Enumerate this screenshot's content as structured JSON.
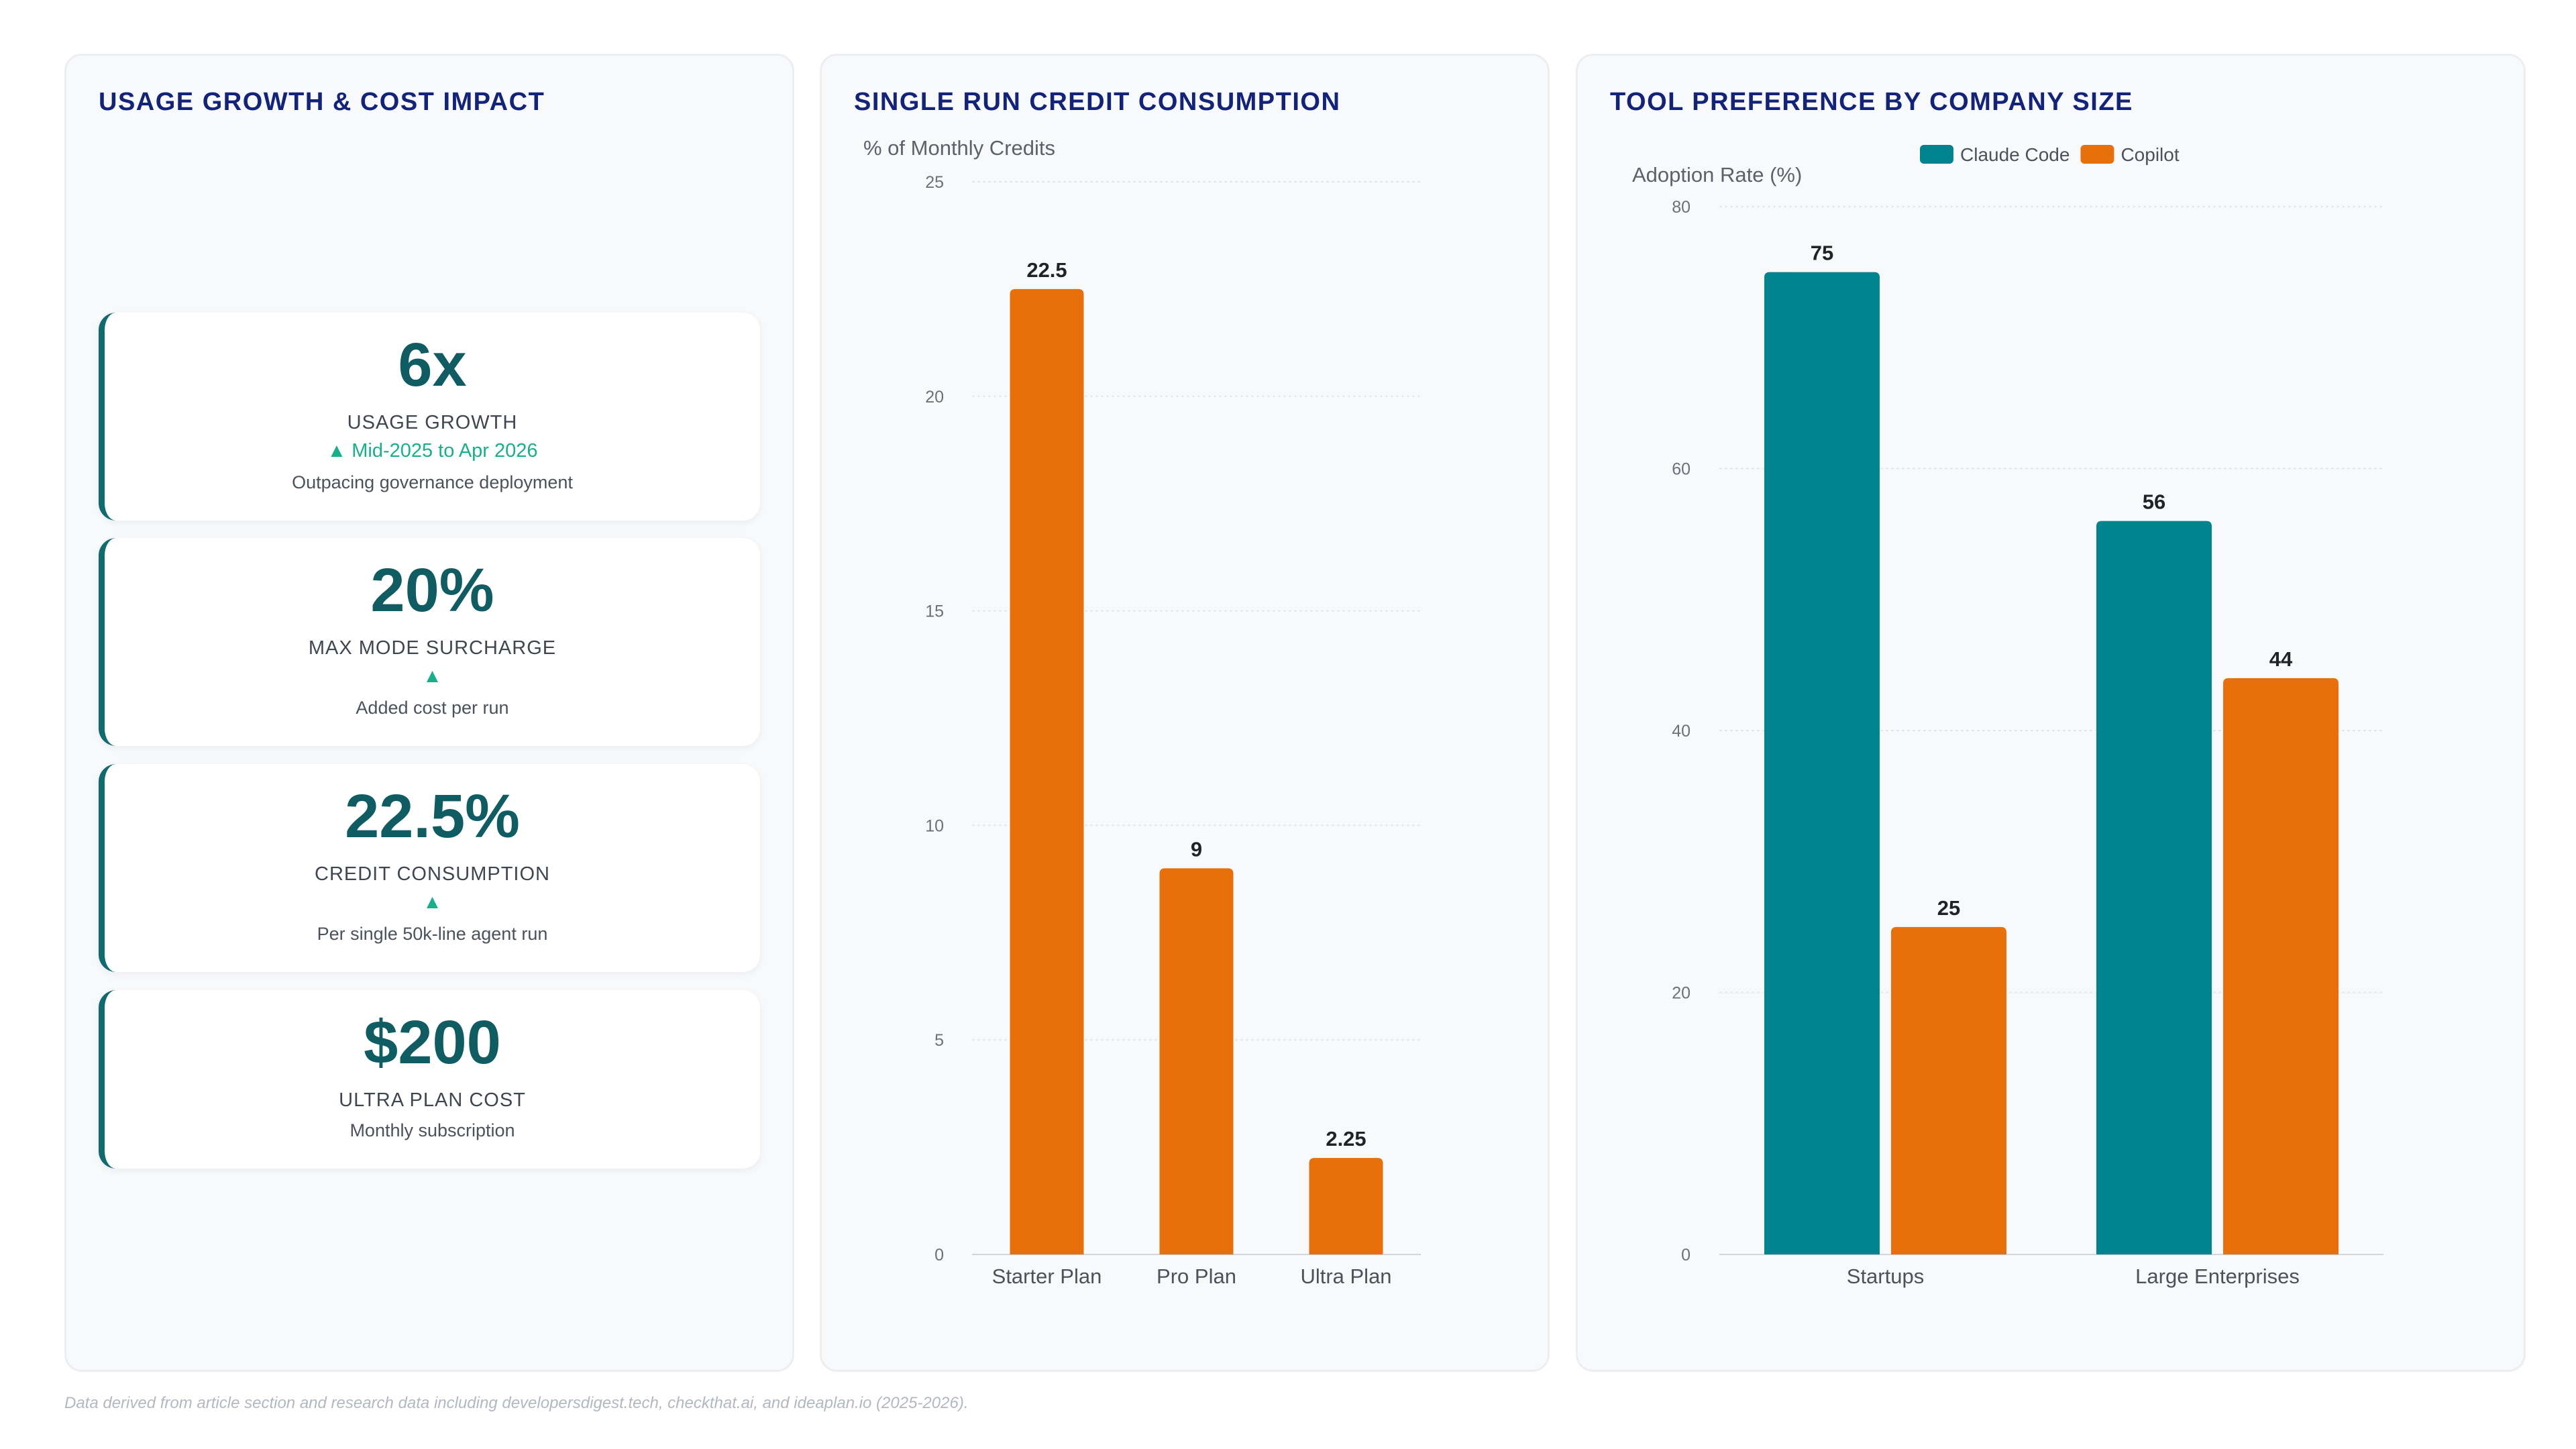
{
  "colors": {
    "title": "#14237a",
    "kpi_value": "#0f5c63",
    "kpi_accent": "#0f6b6f",
    "trend": "#18b08a",
    "teal": "#00838c",
    "orange": "#e8700a"
  },
  "kpi_panel": {
    "title": "USAGE GROWTH & COST IMPACT",
    "cards": [
      {
        "value": "6x",
        "label": "USAGE GROWTH",
        "trend": "▲ Mid-2025 to Apr 2026",
        "desc": "Outpacing governance deployment"
      },
      {
        "value": "20%",
        "label": "MAX MODE SURCHARGE",
        "trend": "▲",
        "desc": "Added cost per run"
      },
      {
        "value": "22.5%",
        "label": "CREDIT CONSUMPTION",
        "trend": "▲",
        "desc": "Per single 50k-line agent run"
      },
      {
        "value": "$200",
        "label": "ULTRA PLAN COST",
        "trend": "",
        "desc": "Monthly subscription"
      }
    ]
  },
  "chart_data": [
    {
      "type": "bar",
      "title": "SINGLE RUN CREDIT CONSUMPTION",
      "ylabel": "% of Monthly Credits",
      "xlabel": "",
      "categories": [
        "Starter Plan",
        "Pro Plan",
        "Ultra Plan"
      ],
      "values": [
        22.5,
        9,
        2.25
      ],
      "data_labels": [
        "22.5",
        "9",
        "2.25"
      ],
      "ylim": [
        0,
        25
      ],
      "yticks": [
        0,
        5,
        10,
        15,
        20,
        25
      ],
      "grid": true,
      "legend": "none",
      "color": "#e8700a"
    },
    {
      "type": "bar",
      "title": "TOOL PREFERENCE BY COMPANY SIZE",
      "ylabel": "Adoption Rate (%)",
      "xlabel": "",
      "categories": [
        "Startups",
        "Large Enterprises"
      ],
      "series": [
        {
          "name": "Claude Code",
          "values": [
            75,
            56
          ],
          "color": "#00838c"
        },
        {
          "name": "Copilot",
          "values": [
            25,
            44
          ],
          "color": "#e8700a"
        }
      ],
      "ylim": [
        0,
        80
      ],
      "yticks": [
        0,
        20,
        40,
        60,
        80
      ],
      "grid": true,
      "legend": "top-center"
    }
  ],
  "footnote": "Data derived from article section and research data including developersdigest.tech, checkthat.ai, and ideaplan.io (2025-2026)."
}
